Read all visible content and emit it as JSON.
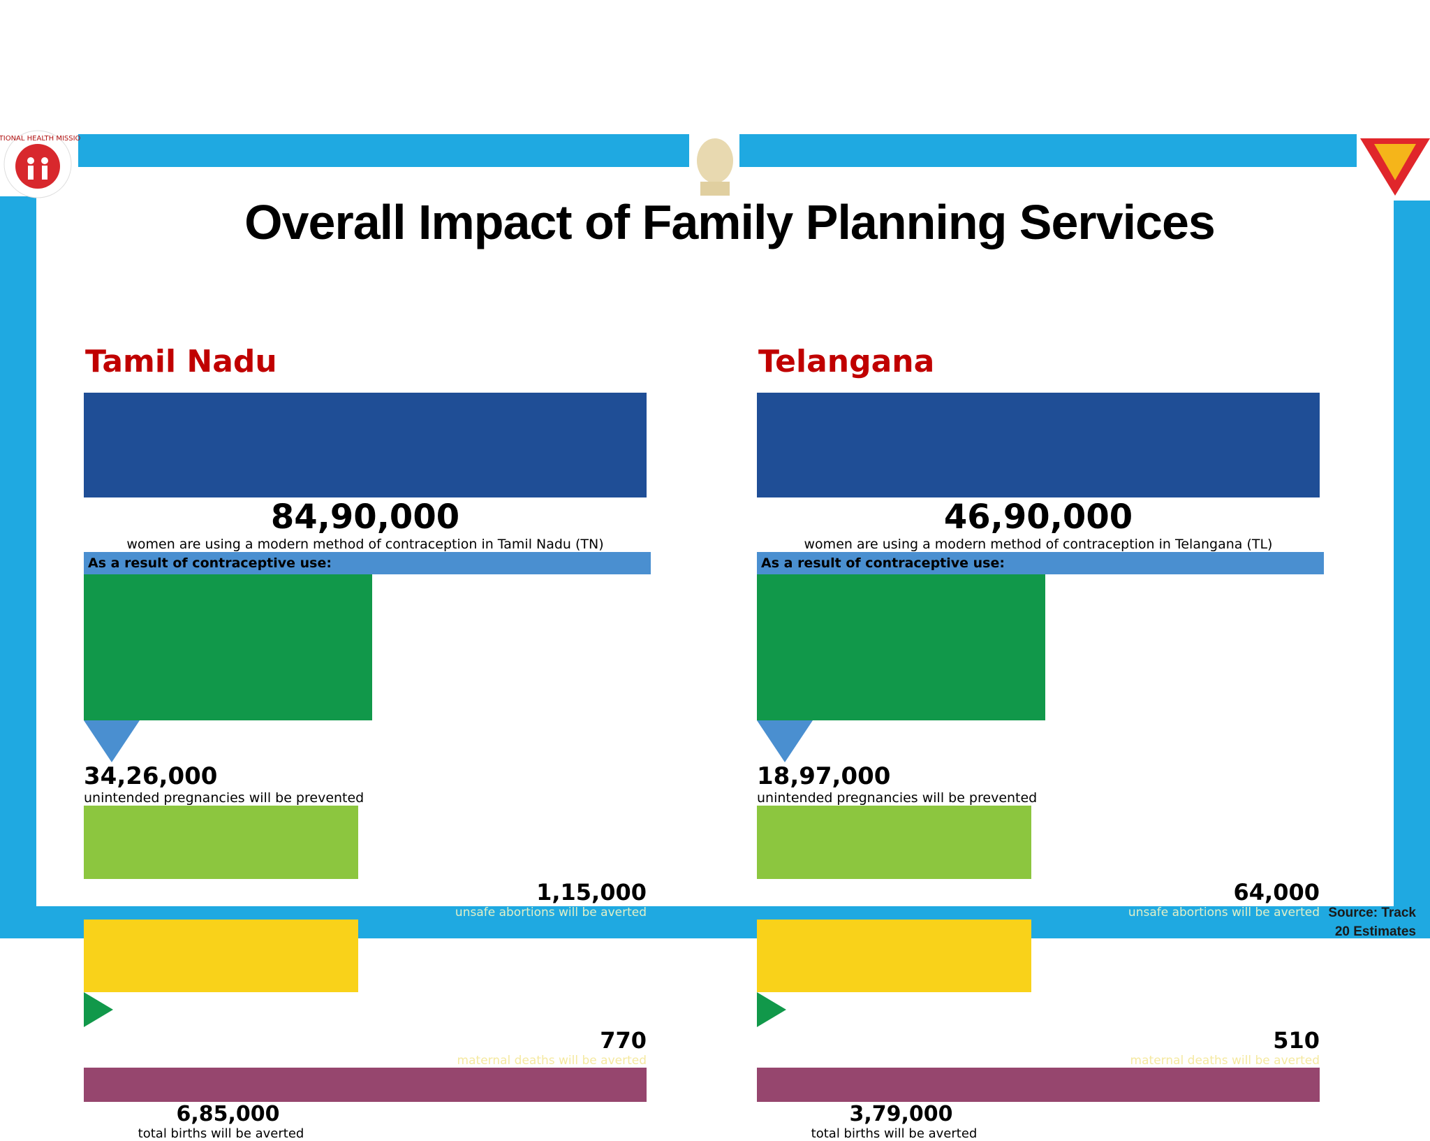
{
  "header": {
    "title": "Overall Impact of Family Planning Services",
    "logo_text": "NATIONAL HEALTH MISSION"
  },
  "panels": [
    {
      "state": "Tamil Nadu",
      "women": "84,90,000",
      "women_text": "women are using a modern method of contraception in Tamil Nadu (TN)",
      "result_label": "As a result of contraceptive use:",
      "pregnancies": "34,26,000",
      "pregnancies_text": "unintended pregnancies will be prevented",
      "abortions": "1,15,000",
      "abortions_text": "unsafe abortions will be averted",
      "deaths": "770",
      "deaths_text": "maternal deaths will be averted",
      "births": "6,85,000",
      "births_text": "total births will be averted"
    },
    {
      "state": "Telangana",
      "women": "46,90,000",
      "women_text": "women are using a modern method of contraception in Telangana (TL)",
      "result_label": "As a result of contraceptive use:",
      "pregnancies": "18,97,000",
      "pregnancies_text": "unintended pregnancies will be prevented",
      "abortions": "64,000",
      "abortions_text": "unsafe abortions will be averted",
      "deaths": "510",
      "deaths_text": "maternal deaths will be averted",
      "births": "3,79,000",
      "births_text": "total births will be averted"
    }
  ],
  "footer": {
    "source": "Source: Track 20 Estimates"
  }
}
